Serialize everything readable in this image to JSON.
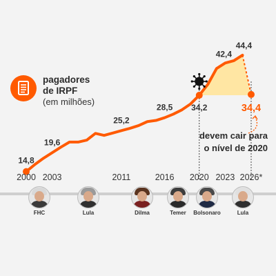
{
  "legend": {
    "icon": "document-icon",
    "line1": "pagadores",
    "line2": "de IRPF",
    "line3": "(em milhões)"
  },
  "annotation": {
    "line1": "devem cair para",
    "line2": "o nível de 2020",
    "icon": "virus-icon"
  },
  "colors": {
    "accent": "#ff5a00",
    "fill": "#ffe6a3",
    "text": "#2b2b2b"
  },
  "presidents": [
    {
      "name": "FHC",
      "hair": "#d8d8d8",
      "suit": "#3a3a3a"
    },
    {
      "name": "Lula",
      "hair": "#9a9a9a",
      "suit": "#2f2f2f"
    },
    {
      "name": "Dilma",
      "hair": "#5a3420",
      "suit": "#7a2020"
    },
    {
      "name": "Temer",
      "hair": "#3d3d3d",
      "suit": "#2a2a2a"
    },
    {
      "name": "Bolsonaro",
      "hair": "#4a4a4a",
      "suit": "#1f2a44"
    },
    {
      "name": "Lula",
      "hair": "#e0e0e0",
      "suit": "#2f2f2f"
    }
  ],
  "chart_data": {
    "type": "line",
    "title": "",
    "xlabel": "",
    "ylabel": "",
    "x_ticks": [
      "2000",
      "2003",
      "2011",
      "2016",
      "2020",
      "2023",
      "2026*"
    ],
    "x": [
      2000,
      2001,
      2002,
      2003,
      2004,
      2005,
      2006,
      2007,
      2008,
      2009,
      2010,
      2011,
      2012,
      2013,
      2014,
      2015,
      2016,
      2017,
      2018,
      2019,
      2020,
      2021,
      2022,
      2023,
      2024,
      2025,
      2026
    ],
    "values": [
      14.8,
      16.6,
      18.2,
      19.6,
      21.0,
      22.3,
      22.3,
      22.8,
      24.5,
      24.0,
      24.6,
      25.2,
      25.8,
      26.5,
      27.5,
      27.8,
      28.5,
      29.4,
      30.5,
      32.0,
      34.2,
      37.0,
      41.0,
      42.4,
      43.0,
      44.4,
      34.4
    ],
    "labels": [
      {
        "x": 2000,
        "text": "14,8"
      },
      {
        "x": 2003,
        "text": "19,6"
      },
      {
        "x": 2011,
        "text": "25,2"
      },
      {
        "x": 2016,
        "text": "28,5"
      },
      {
        "x": 2020,
        "text": "34,2"
      },
      {
        "x": 2023,
        "text": "42,4"
      },
      {
        "x": 2025,
        "text": "44,4"
      },
      {
        "x": 2026,
        "text": "34,4"
      }
    ],
    "highlight_area": {
      "from": 2020,
      "to": 2026
    },
    "reference_lines": [
      2020,
      2026
    ],
    "ylim": [
      10,
      50
    ],
    "grid": false
  }
}
